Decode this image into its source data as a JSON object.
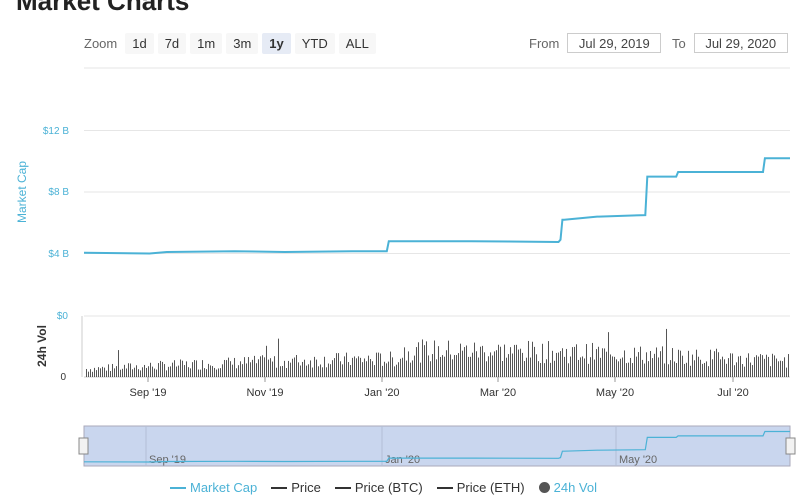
{
  "page": {
    "title": "Market Charts"
  },
  "toolbar": {
    "zoom_label": "Zoom",
    "zoom_buttons": [
      "1d",
      "7d",
      "1m",
      "3m",
      "1y",
      "YTD",
      "ALL"
    ],
    "active_zoom": "1y",
    "from_label": "From",
    "from_value": "Jul 29, 2019",
    "to_label": "To",
    "to_value": "Jul 29, 2020"
  },
  "colors": {
    "market_cap": "#4bb2d6",
    "volume": "#555555",
    "navigator_fill": "#c9d6ee",
    "grid": "#e6e6e6",
    "axis_text": "#4bb2d6"
  },
  "chart_data": [
    {
      "type": "line",
      "ylabel": "Market Cap",
      "y_ticks": [
        "$4 B",
        "$8 B",
        "$12 B"
      ],
      "ylim": [
        4,
        12
      ],
      "x_start": "2019-07-29",
      "x_end": "2020-07-29",
      "series": [
        {
          "name": "Market Cap",
          "unit": "B USD",
          "x": [
            "2019-07-29",
            "2019-09-01",
            "2019-09-10",
            "2019-10-15",
            "2019-11-10",
            "2019-12-15",
            "2020-01-02",
            "2020-01-03",
            "2020-02-15",
            "2020-03-31",
            "2020-04-01",
            "2020-04-02",
            "2020-04-03",
            "2020-04-20",
            "2020-04-21",
            "2020-05-15",
            "2020-05-16",
            "2020-05-20",
            "2020-05-31",
            "2020-06-01",
            "2020-07-15",
            "2020-07-16",
            "2020-07-29"
          ],
          "values": [
            4.05,
            4.0,
            4.1,
            4.15,
            4.1,
            4.15,
            4.15,
            4.8,
            4.8,
            4.75,
            4.9,
            6.2,
            6.2,
            6.4,
            6.4,
            6.5,
            9.0,
            9.0,
            9.0,
            9.3,
            9.3,
            10.2,
            10.2
          ]
        }
      ]
    },
    {
      "type": "bar",
      "ylabel": "24h Vol",
      "y_ticks": [
        "0",
        "$0"
      ],
      "series": [
        {
          "name": "24h Vol"
        }
      ]
    }
  ],
  "x_axis": {
    "ticks": [
      "Sep '19",
      "Nov '19",
      "Jan '20",
      "Mar '20",
      "May '20",
      "Jul '20"
    ]
  },
  "navigator": {
    "ticks": [
      "Sep '19",
      "Jan '20",
      "May '20"
    ]
  },
  "legend": [
    {
      "label": "Market Cap",
      "kind": "line"
    },
    {
      "label": "Price",
      "kind": "line"
    },
    {
      "label": "Price (BTC)",
      "kind": "line"
    },
    {
      "label": "Price (ETH)",
      "kind": "line"
    },
    {
      "label": "24h Vol",
      "kind": "dot"
    }
  ]
}
